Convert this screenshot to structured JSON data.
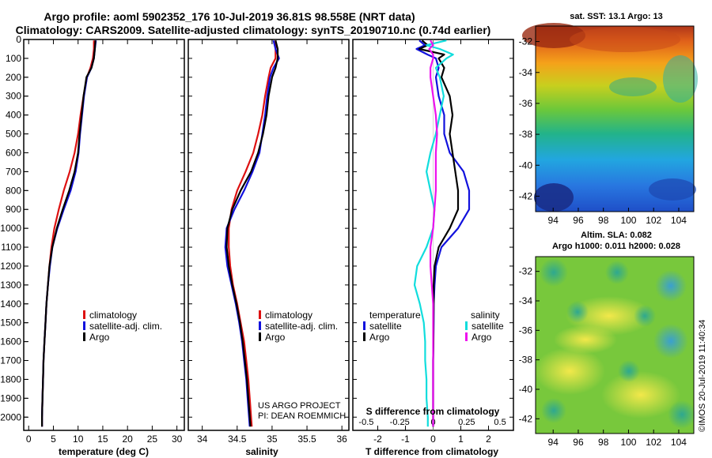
{
  "title": {
    "line1": "Argo profile: aoml 5902352_176 10-Jul-2019 36.81S 98.558E (NRT data)",
    "line2": "Climatology: CARS2009. Satellite-adjusted climatology: synTS_20190710.nc (0.74d earlier)"
  },
  "colors": {
    "climatology": "#dd1111",
    "satellite": "#1111dd",
    "argo": "#000000",
    "cyan": "#11dddd",
    "magenta": "#ee11ee"
  },
  "chart_data": [
    {
      "type": "line",
      "id": "temperature",
      "xlabel": "temperature (deg C)",
      "xlim": [
        -1,
        31.5
      ],
      "ylim": [
        2070,
        0
      ],
      "yticks": [
        0,
        100,
        200,
        300,
        400,
        500,
        600,
        700,
        800,
        900,
        1000,
        1100,
        1200,
        1300,
        1400,
        1500,
        1600,
        1700,
        1800,
        1900,
        2000
      ],
      "xticks": [
        "0",
        "5",
        "10",
        "15",
        "20",
        "25",
        "30"
      ],
      "legend": [
        "climatology",
        "satellite-adj. clim.",
        "Argo"
      ],
      "depth": [
        5,
        50,
        100,
        150,
        200,
        300,
        400,
        500,
        600,
        700,
        800,
        900,
        1000,
        1100,
        1200,
        1300,
        1400,
        1500,
        1600,
        1700,
        1800,
        1900,
        2000,
        2050
      ],
      "series": [
        {
          "name": "climatology",
          "color_key": "climatology",
          "values": [
            13.2,
            13.2,
            13.0,
            12.5,
            11.8,
            11.1,
            10.5,
            10.0,
            9.3,
            8.3,
            7.1,
            6.1,
            5.2,
            4.6,
            4.2,
            3.9,
            3.6,
            3.4,
            3.2,
            3.0,
            2.9,
            2.8,
            2.7,
            2.7
          ]
        },
        {
          "name": "satellite-adj. clim.",
          "color_key": "satellite",
          "values": [
            13.6,
            13.4,
            13.2,
            12.7,
            11.8,
            11.2,
            10.8,
            10.4,
            10.1,
            9.5,
            8.5,
            7.1,
            5.8,
            4.8,
            4.3,
            3.9,
            3.6,
            3.4,
            3.2,
            3.0,
            2.9,
            2.8,
            2.7,
            2.7
          ]
        },
        {
          "name": "Argo",
          "color_key": "argo",
          "values": [
            13.5,
            13.4,
            13.2,
            12.7,
            11.7,
            11.1,
            10.7,
            10.3,
            10.0,
            9.3,
            8.2,
            6.9,
            5.7,
            4.8,
            4.2,
            3.9,
            3.6,
            3.4,
            3.2,
            3.0,
            2.9,
            2.8,
            2.7,
            2.7
          ]
        }
      ]
    },
    {
      "type": "line",
      "id": "salinity",
      "xlabel": "salinity",
      "xlim": [
        33.8,
        36.1
      ],
      "ylim": [
        2070,
        0
      ],
      "xticks": [
        "34",
        "34.5",
        "35",
        "35.5",
        "36"
      ],
      "legend": [
        "climatology",
        "satellite-adj. clim.",
        "Argo"
      ],
      "depth": [
        5,
        50,
        100,
        150,
        200,
        300,
        400,
        500,
        600,
        700,
        800,
        900,
        1000,
        1100,
        1200,
        1300,
        1400,
        1500,
        1600,
        1700,
        1800,
        1900,
        2000,
        2050
      ],
      "series": [
        {
          "name": "climatology",
          "color_key": "climatology",
          "values": [
            35.05,
            35.05,
            35.05,
            34.98,
            34.95,
            34.9,
            34.86,
            34.8,
            34.73,
            34.62,
            34.5,
            34.42,
            34.38,
            34.38,
            34.4,
            34.44,
            34.5,
            34.55,
            34.6,
            34.63,
            34.66,
            34.68,
            34.7,
            34.71
          ]
        },
        {
          "name": "satellite-adj. clim.",
          "color_key": "satellite",
          "values": [
            35.02,
            35.05,
            35.1,
            35.02,
            34.97,
            34.93,
            34.9,
            34.86,
            34.82,
            34.72,
            34.6,
            34.46,
            34.35,
            34.33,
            34.36,
            34.42,
            34.48,
            34.53,
            34.57,
            34.6,
            34.63,
            34.65,
            34.67,
            34.68
          ]
        },
        {
          "name": "Argo",
          "color_key": "argo",
          "values": [
            35.05,
            35.08,
            35.08,
            35.05,
            35.0,
            34.95,
            34.92,
            34.87,
            34.8,
            34.7,
            34.55,
            34.43,
            34.36,
            34.35,
            34.38,
            34.43,
            34.49,
            34.54,
            34.58,
            34.61,
            34.64,
            34.66,
            34.68,
            34.69
          ]
        }
      ],
      "annotation": [
        "US ARGO PROJECT",
        "PI: DEAN ROEMMICH"
      ]
    },
    {
      "type": "line",
      "id": "difference",
      "xlabel": "T difference from climatology",
      "top_xlabel": "S difference from climatology",
      "xlim": [
        -2.9,
        2.9
      ],
      "ylim": [
        2070,
        0
      ],
      "xticks": [
        "-2",
        "-1",
        "0",
        "1",
        "2"
      ],
      "top_xticks": [
        "-0.5",
        "-0.25",
        "0",
        "0.25",
        "0.5"
      ],
      "legend_groups": {
        "temperature": [
          "satellite",
          "Argo"
        ],
        "salinity": [
          "satellite",
          "Argo"
        ]
      },
      "depth": [
        5,
        30,
        50,
        80,
        100,
        150,
        200,
        300,
        400,
        500,
        600,
        700,
        800,
        900,
        1000,
        1100,
        1200,
        1300,
        1400,
        1500,
        1600,
        1700,
        1800,
        1900,
        2000,
        2050
      ],
      "series": [
        {
          "name": "temperature satellite",
          "color_key": "satellite",
          "values": [
            -0.5,
            -0.3,
            -0.6,
            -0.2,
            0.1,
            0.2,
            0.1,
            0.2,
            0.4,
            0.4,
            0.6,
            1.1,
            1.3,
            1.3,
            0.9,
            0.3,
            0.1,
            0.05,
            0.02,
            0.02,
            0.01,
            0.0,
            0.0,
            0.0,
            0.0,
            0.0
          ]
        },
        {
          "name": "temperature Argo",
          "color_key": "argo",
          "values": [
            -0.4,
            -0.2,
            -0.5,
            0.4,
            0.2,
            0.4,
            0.3,
            0.6,
            0.7,
            0.6,
            0.7,
            0.8,
            0.9,
            0.9,
            0.6,
            0.2,
            0.05,
            0.02,
            0.02,
            0.01,
            0.01,
            0.0,
            0.0,
            0.0,
            0.0,
            0.0
          ]
        },
        {
          "name": "salinity satellite",
          "color_key": "cyan",
          "values": [
            0.1,
            -0.05,
            0.05,
            0.15,
            0.1,
            0.02,
            0.05,
            0.08,
            0.05,
            0.02,
            -0.02,
            -0.05,
            -0.02,
            0.01,
            0.0,
            -0.05,
            -0.12,
            -0.14,
            -0.1,
            -0.07,
            -0.06,
            -0.06,
            -0.05,
            -0.05,
            -0.04,
            -0.04
          ]
        },
        {
          "name": "salinity Argo",
          "color_key": "magenta",
          "values": [
            -0.02,
            0.0,
            -0.03,
            0.0,
            0.0,
            -0.02,
            -0.02,
            0.0,
            0.02,
            0.03,
            0.02,
            0.02,
            0.02,
            0.01,
            0.0,
            -0.02,
            -0.02,
            -0.01,
            0.0,
            0.0,
            0.0,
            0.0,
            0.0,
            0.0,
            0.0,
            0.0
          ]
        }
      ]
    },
    {
      "type": "heatmap",
      "id": "sst-map",
      "title": "sat. SST: 13.1 Argo: 13",
      "xticks": [
        "94",
        "96",
        "98",
        "100",
        "102",
        "104"
      ],
      "yticks": [
        "-32",
        "-34",
        "-36",
        "-38",
        "-40",
        "-42"
      ],
      "xlim": [
        92.6,
        105.2
      ],
      "ylim": [
        -43,
        -31
      ]
    },
    {
      "type": "heatmap",
      "id": "sla-map",
      "title_line1": "Altim. SLA: 0.082",
      "title_line2": "Argo h1000: 0.011 h2000: 0.028",
      "xticks": [
        "94",
        "96",
        "98",
        "100",
        "102",
        "104"
      ],
      "yticks": [
        "-32",
        "-34",
        "-36",
        "-38",
        "-40",
        "-42"
      ],
      "xlim": [
        92.6,
        105.2
      ],
      "ylim": [
        -43,
        -31
      ]
    }
  ],
  "legend": {
    "climatology": "climatology",
    "satellite_clim": "satellite-adj. clim.",
    "argo": "Argo",
    "temperature_header": "temperature",
    "salinity_header": "salinity",
    "satellite": "satellite"
  },
  "footer": {
    "imos_stamp": "©IMOS 20-Jul-2019 11:40:34"
  }
}
